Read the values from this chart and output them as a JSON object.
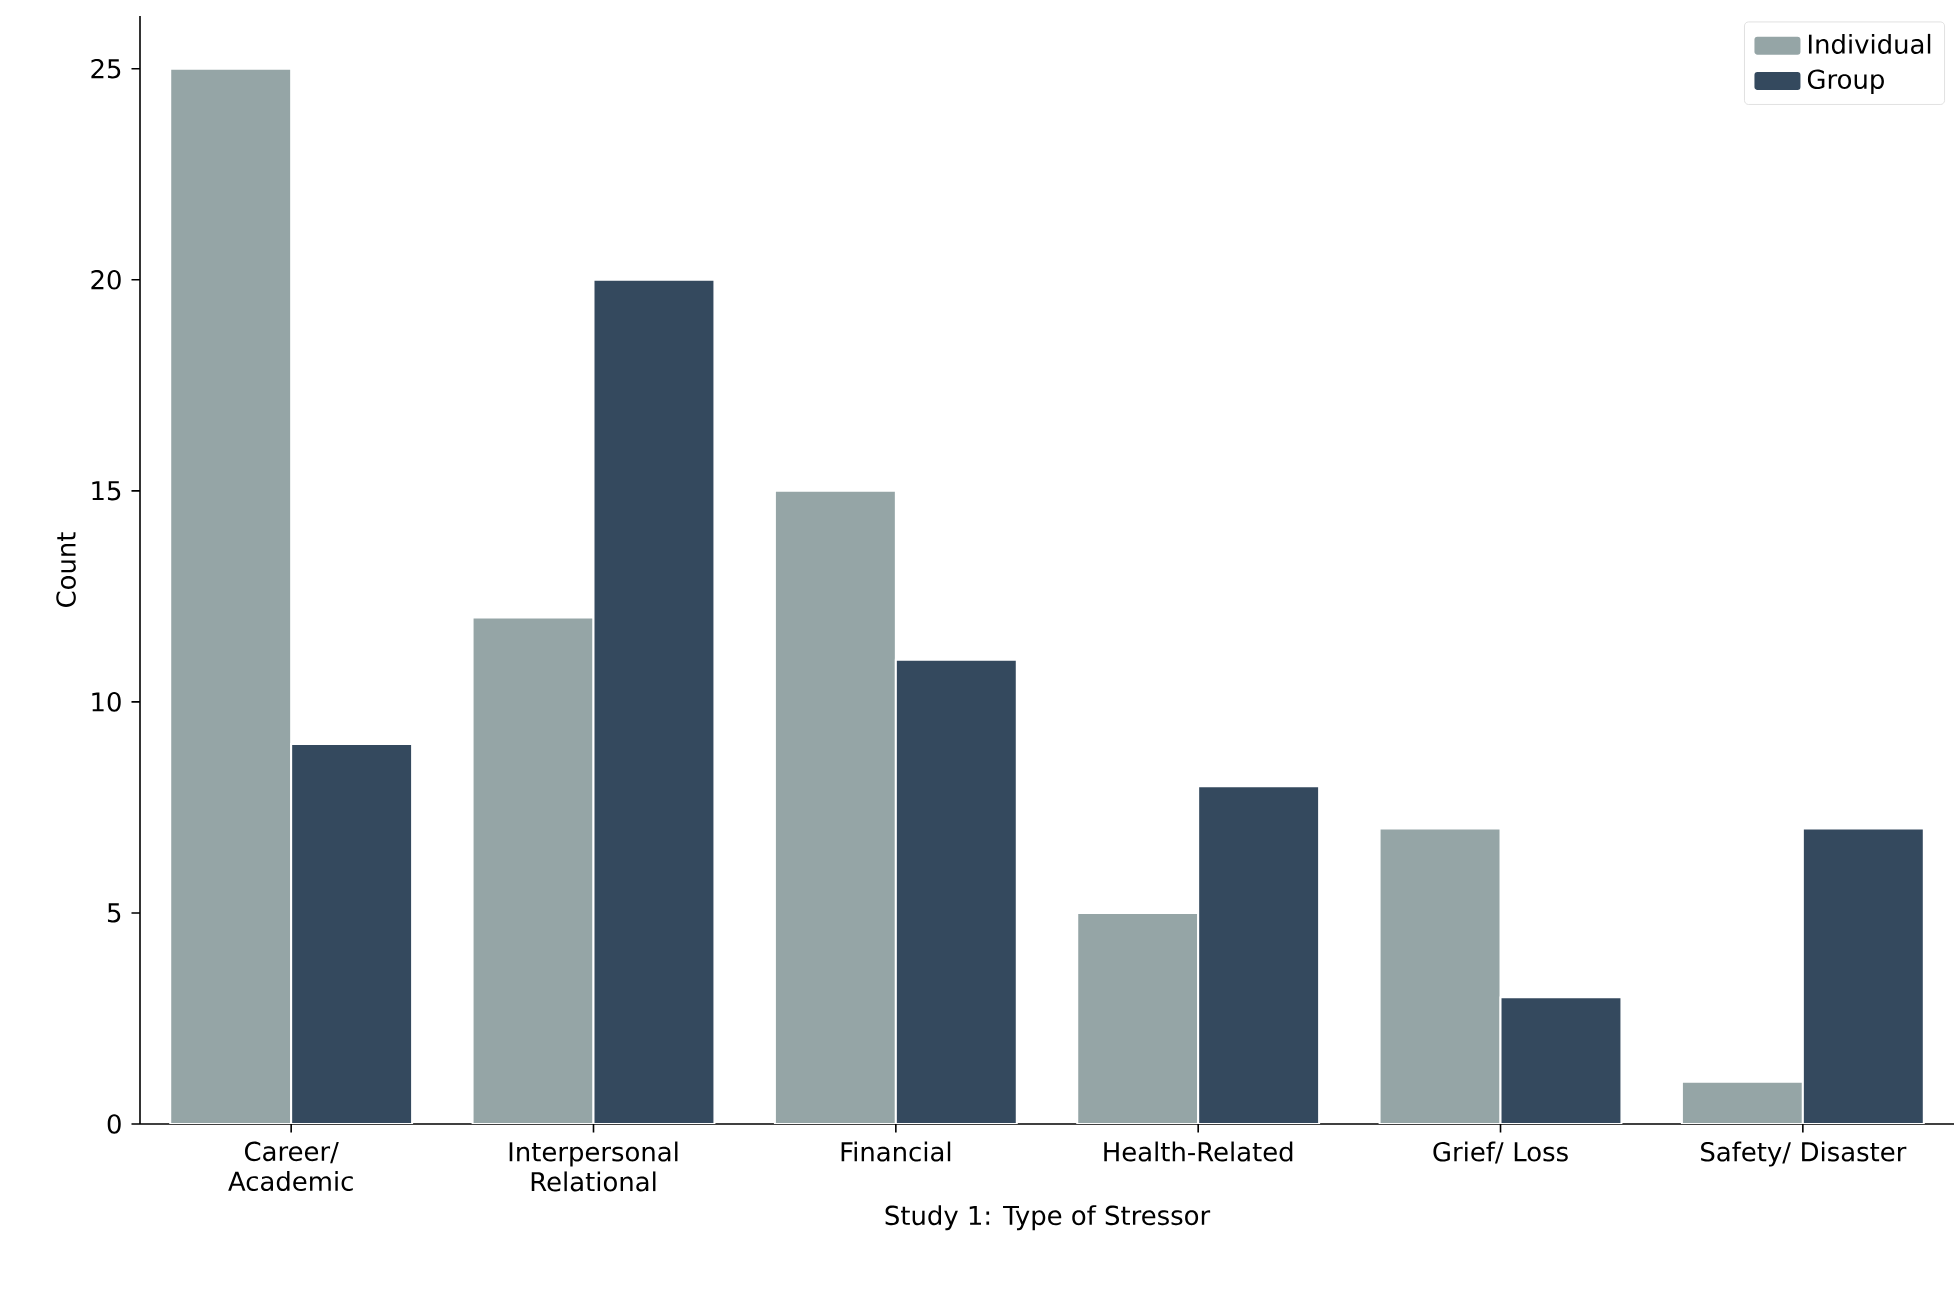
{
  "chart_data": {
    "type": "bar",
    "xlabel": "Study 1: Type of Stressor",
    "ylabel": "Count",
    "categories": [
      "Career/ Academic",
      "Interpersonal Relational",
      "Financial",
      "Health-Related",
      "Grief/ Loss",
      "Safety/ Disaster"
    ],
    "series": [
      {
        "name": "Individual",
        "color": "#95a5a6",
        "values": [
          25,
          12,
          15,
          5,
          7,
          1
        ]
      },
      {
        "name": "Group",
        "color": "#34495e",
        "values": [
          9,
          20,
          11,
          8,
          3,
          7
        ]
      }
    ],
    "ylim": [
      0,
      26.25
    ],
    "yticks": [
      0,
      5,
      10,
      15,
      20,
      25
    ],
    "legend": "top right",
    "grid": false
  }
}
